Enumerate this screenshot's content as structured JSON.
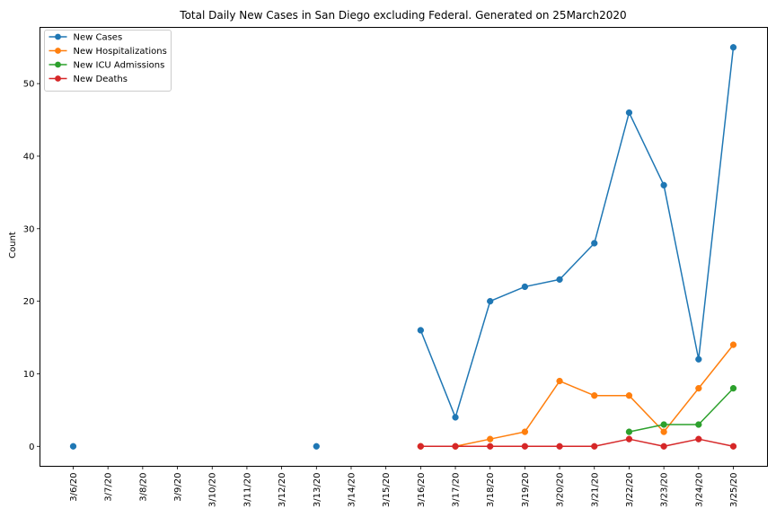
{
  "chart_data": {
    "type": "line",
    "title": "Total Daily New Cases in San Diego excluding Federal. Generated on 25March2020",
    "xlabel": "",
    "ylabel": "Count",
    "ylim": [
      -2.75,
      57.75
    ],
    "y_ticks": [
      0,
      10,
      20,
      30,
      40,
      50
    ],
    "grid": false,
    "legend_position": "top-left",
    "categories": [
      "3/6/20",
      "3/7/20",
      "3/8/20",
      "3/9/20",
      "3/10/20",
      "3/11/20",
      "3/12/20",
      "3/13/20",
      "3/14/20",
      "3/15/20",
      "3/16/20",
      "3/17/20",
      "3/18/20",
      "3/19/20",
      "3/20/20",
      "3/21/20",
      "3/22/20",
      "3/23/20",
      "3/24/20",
      "3/25/20"
    ],
    "series": [
      {
        "name": "New Cases",
        "color": "#1f77b4",
        "values": [
          0,
          null,
          null,
          null,
          null,
          null,
          null,
          0,
          null,
          null,
          16,
          4,
          20,
          22,
          23,
          28,
          46,
          36,
          12,
          55
        ]
      },
      {
        "name": "New Hospitalizations",
        "color": "#ff7f0e",
        "values": [
          null,
          null,
          null,
          null,
          null,
          null,
          null,
          null,
          null,
          null,
          0,
          0,
          1,
          2,
          9,
          7,
          7,
          2,
          8,
          14
        ]
      },
      {
        "name": "New ICU Admissions",
        "color": "#2ca02c",
        "values": [
          null,
          null,
          null,
          null,
          null,
          null,
          null,
          null,
          null,
          null,
          null,
          null,
          null,
          null,
          null,
          null,
          2,
          3,
          3,
          8
        ]
      },
      {
        "name": "New Deaths",
        "color": "#d62728",
        "values": [
          null,
          null,
          null,
          null,
          null,
          null,
          null,
          null,
          null,
          null,
          0,
          0,
          0,
          0,
          0,
          0,
          1,
          0,
          1,
          0
        ]
      }
    ]
  }
}
